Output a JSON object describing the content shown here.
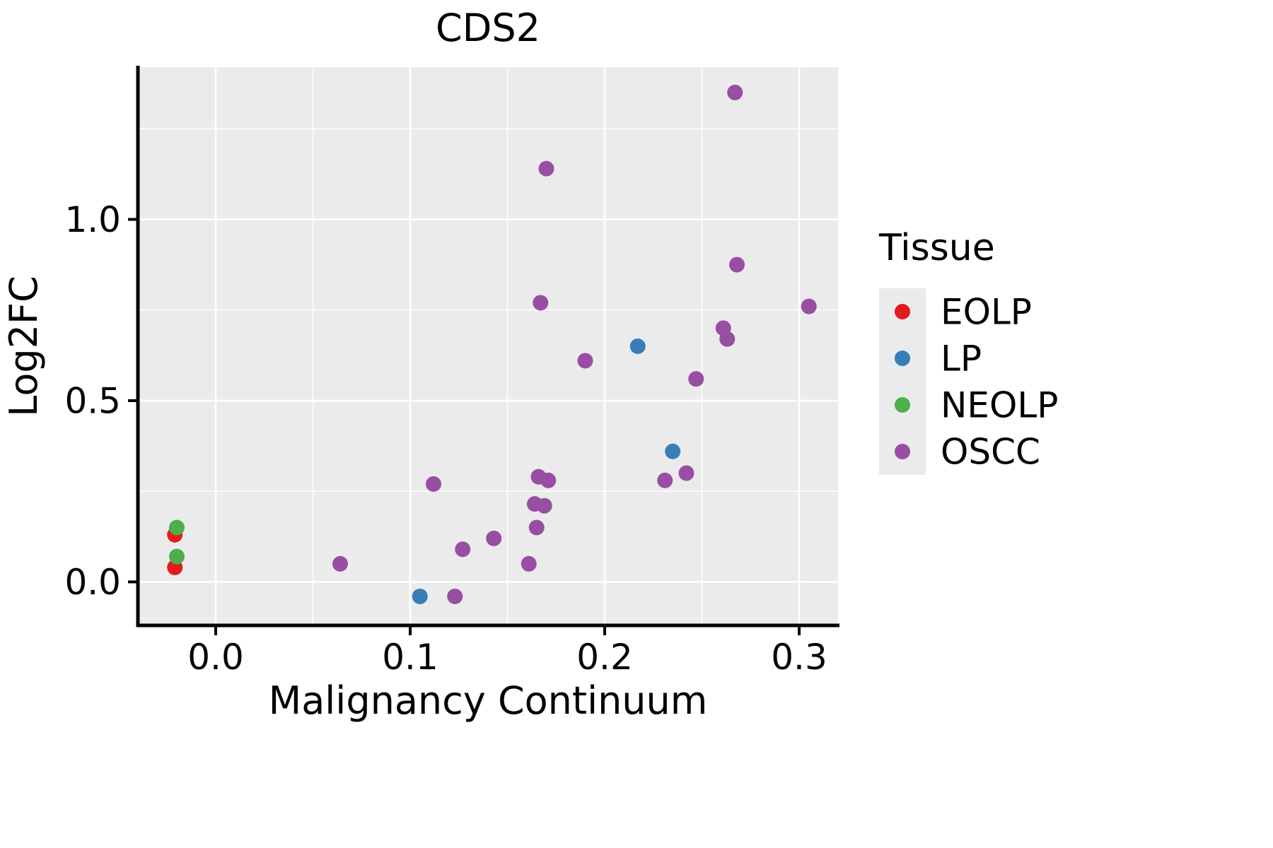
{
  "chart_data": {
    "type": "scatter",
    "title": "CDS2",
    "xlabel": "Malignancy Continuum",
    "ylabel": "Log2FC",
    "xlim": [
      -0.04,
      0.32
    ],
    "ylim": [
      -0.12,
      1.42
    ],
    "xticks": [
      0.0,
      0.1,
      0.2,
      0.3
    ],
    "xtick_labels": [
      "0.0",
      "0.1",
      "0.2",
      "0.3"
    ],
    "yticks": [
      0.0,
      0.5,
      1.0
    ],
    "ytick_labels": [
      "0.0",
      "0.5",
      "1.0"
    ],
    "x_minor": [
      0.05,
      0.15,
      0.25
    ],
    "y_minor": [
      0.25,
      0.75,
      1.25
    ],
    "grid": "white-major-minor-on-grey-panel",
    "panel_color": "#EBEBEB",
    "legend_position": "right",
    "legend_title": "Tissue",
    "point_radius_px": 11,
    "series": [
      {
        "name": "EOLP",
        "color": "#E41A1C",
        "points": [
          [
            -0.021,
            0.13
          ],
          [
            -0.021,
            0.04
          ]
        ]
      },
      {
        "name": "LP",
        "color": "#377EB8",
        "points": [
          [
            0.105,
            -0.04
          ],
          [
            0.217,
            0.65
          ],
          [
            0.235,
            0.36
          ]
        ]
      },
      {
        "name": "NEOLP",
        "color": "#4DAF4A",
        "points": [
          [
            -0.02,
            0.15
          ],
          [
            -0.02,
            0.07
          ]
        ]
      },
      {
        "name": "OSCC",
        "color": "#984EA3",
        "points": [
          [
            0.064,
            0.05
          ],
          [
            0.112,
            0.27
          ],
          [
            0.123,
            -0.04
          ],
          [
            0.127,
            0.09
          ],
          [
            0.143,
            0.12
          ],
          [
            0.161,
            0.05
          ],
          [
            0.164,
            0.215
          ],
          [
            0.169,
            0.21
          ],
          [
            0.165,
            0.15
          ],
          [
            0.166,
            0.29
          ],
          [
            0.171,
            0.28
          ],
          [
            0.167,
            0.77
          ],
          [
            0.17,
            1.14
          ],
          [
            0.19,
            0.61
          ],
          [
            0.231,
            0.28
          ],
          [
            0.242,
            0.3
          ],
          [
            0.247,
            0.56
          ],
          [
            0.261,
            0.7
          ],
          [
            0.263,
            0.67
          ],
          [
            0.267,
            1.35
          ],
          [
            0.268,
            0.875
          ],
          [
            0.305,
            0.76
          ]
        ]
      }
    ],
    "legend_items": [
      {
        "label": "EOLP",
        "color": "#E41A1C"
      },
      {
        "label": "LP",
        "color": "#377EB8"
      },
      {
        "label": "NEOLP",
        "color": "#4DAF4A"
      },
      {
        "label": "OSCC",
        "color": "#984EA3"
      }
    ]
  }
}
